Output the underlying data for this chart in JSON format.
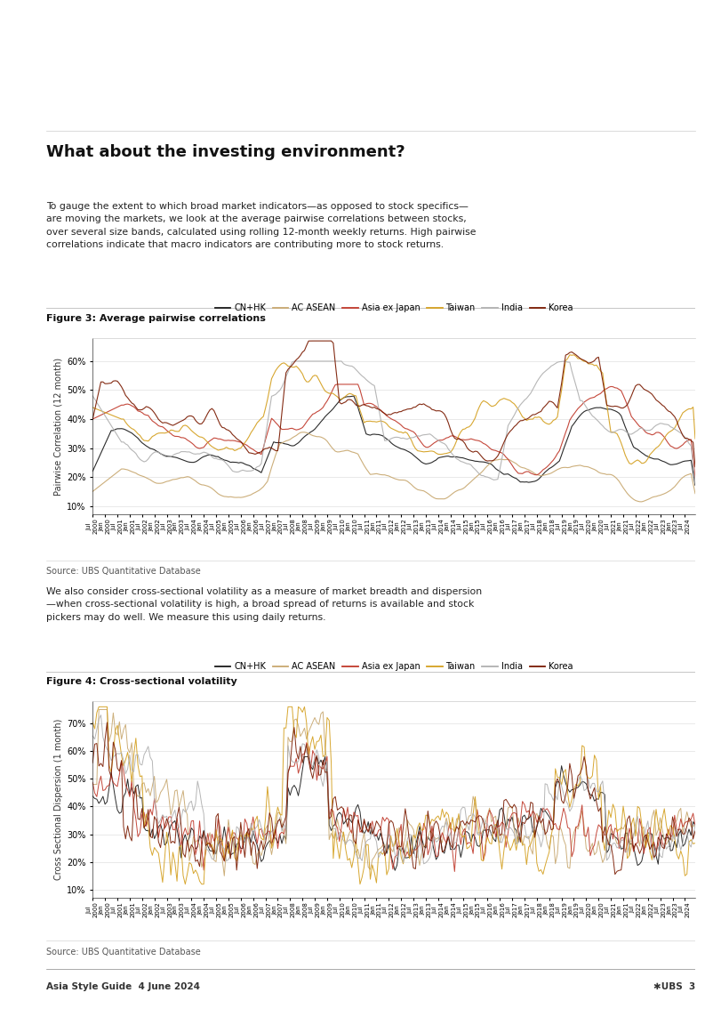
{
  "title": "What about the investing environment?",
  "body_text1": "To gauge the extent to which broad market indicators—as opposed to stock specifics—\nare moving the markets, we look at the average pairwise correlations between stocks,\nover several size bands, calculated using rolling 12-month weekly returns. High pairwise\ncorrelations indicate that macro indicators are contributing more to stock returns.",
  "fig3_title": "Figure 3: Average pairwise correlations",
  "fig4_title": "Figure 4: Cross-sectional volatility",
  "body_text2": "We also consider cross-sectional volatility as a measure of market breadth and dispersion\n—when cross-sectional volatility is high, a broad spread of returns is available and stock\npickers may do well. We measure this using daily returns.",
  "source_text": "Source: UBS Quantitative Database",
  "footer_left": "Asia Style Guide  4 June 2024",
  "footer_right": "✱UBS  3",
  "legend_labels": [
    "CN+HK",
    "AC ASEAN",
    "Asia ex Japan",
    "Taiwan",
    "India",
    "Korea"
  ],
  "line_colors": [
    "#1a1a1a",
    "#c8a870",
    "#c0392b",
    "#d4a020",
    "#b0b0b0",
    "#7a1a00"
  ],
  "fig3_ylabel": "Pairwise Correlation (12 month)",
  "fig4_ylabel": "Cross Sectional Dispersion (1 month)",
  "fig3_ylim": [
    0.07,
    0.68
  ],
  "fig4_ylim": [
    0.07,
    0.78
  ],
  "fig3_yticks": [
    0.1,
    0.2,
    0.3,
    0.4,
    0.5,
    0.6
  ],
  "fig4_yticks": [
    0.1,
    0.2,
    0.3,
    0.4,
    0.5,
    0.6,
    0.7
  ],
  "bg_color": "#ffffff",
  "chart_bg": "#ffffff"
}
